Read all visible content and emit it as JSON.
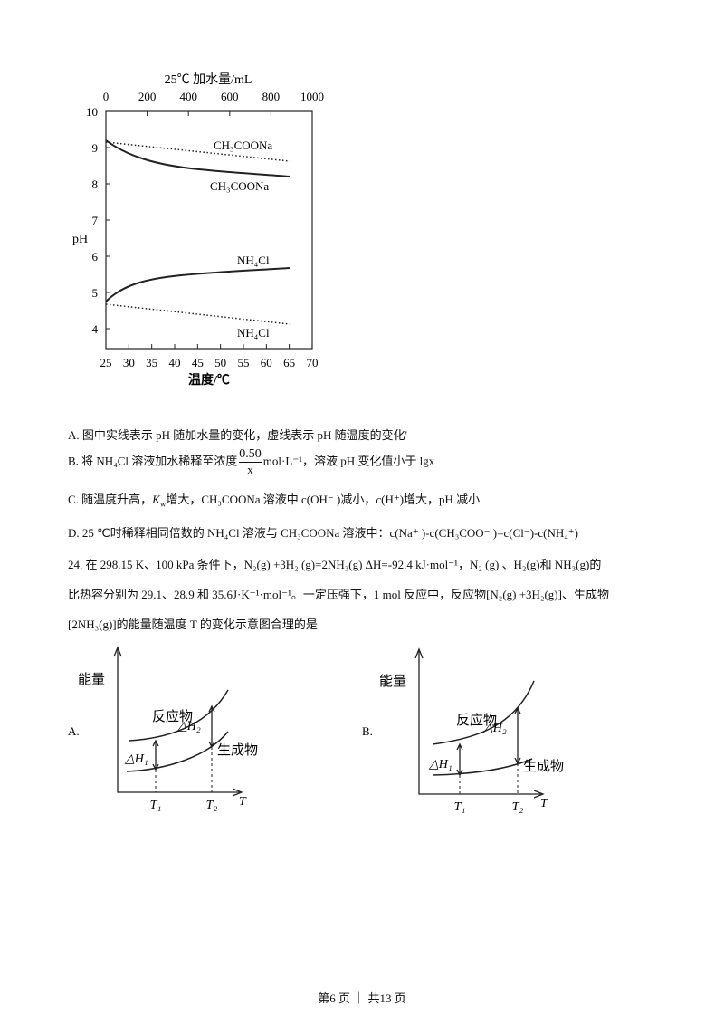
{
  "figure1": {
    "top_axis_title": "25℃ 加水量/mL",
    "top_ticks": [
      "0",
      "200",
      "400",
      "600",
      "800",
      "1000"
    ],
    "y_axis_title": "pH",
    "y_ticks": [
      "10",
      "9",
      "8",
      "7",
      "6",
      "5",
      "4"
    ],
    "bottom_ticks": [
      "25",
      "30",
      "35",
      "40",
      "45",
      "50",
      "55",
      "60",
      "65",
      "70"
    ],
    "bottom_axis_title": "温度/℃",
    "curve_labels": [
      "CH₃COONa",
      "CH₃COONa",
      "NH₄Cl",
      "NH₄Cl"
    ]
  },
  "options": {
    "A": [
      "A. 图中实线表示 pH 随加水量的变化，虚线表示 pH 随温度的变化'"
    ],
    "B": [
      "B. 将 NH₄Cl 溶液加水稀释至浓度",
      "0.50",
      "x",
      "mol·L⁻¹，溶液 pH 变化值小于 lgx"
    ],
    "C": [
      "C. 随温度升高，",
      "K",
      "w",
      "增大，CH₃COONa 溶液中 c(OH⁻ )减小，",
      "c",
      "(H⁺)增大，pH 减小"
    ],
    "D": [
      "D. 25 ℃时稀释相同倍数的 NH₄Cl 溶液与 CH₃COONa 溶液中：c(Na⁺ )-c(CH₃COO⁻ )=c(Cl⁻)-c(NH₄⁺)"
    ]
  },
  "question24": {
    "lines": [
      "24. 在 298.15 K、100 kPa 条件下，N₂(g) +3H₂ (g)=2NH₃(g) ΔH=-92.4 kJ·mol⁻¹，N₂ (g) 、H₂(g)和 NH₃(g)的",
      "比热容分别为 29.1、28.9 和 35.6J·K⁻¹·mol⁻¹。一定压强下，1 mol 反应中，反应物[N₂(g) +3H₂(g)]、生成物",
      "[2NH₃(g)]的能量随温度 T 的变化示意图合理的是"
    ]
  },
  "choiceA": {
    "letter": "A.",
    "y_label": "能量",
    "reactant": "反应物",
    "product": "生成物",
    "dh1": "△H₁",
    "dh2": "△H₂",
    "t1": "T₁",
    "t2": "T₂",
    "t": "T"
  },
  "choiceB": {
    "letter": "B.",
    "y_label": "能量",
    "reactant": "反应物",
    "product": "生成物",
    "dh1": "△H₁",
    "dh2": "△H₂",
    "t1": "T₁",
    "t2": "T₂",
    "t": "T"
  },
  "footer": "第6 页 ｜ 共13 页"
}
